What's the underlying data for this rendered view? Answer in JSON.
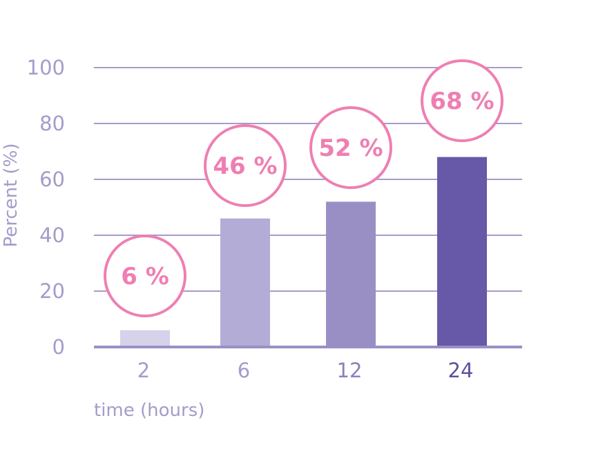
{
  "chart_data": {
    "type": "bar",
    "categories": [
      "2",
      "6",
      "12",
      "24"
    ],
    "values": [
      6,
      46,
      52,
      68
    ],
    "data_labels": [
      "6 %",
      "46 %",
      "52 %",
      "68 %"
    ],
    "bar_colors": [
      "#d6d2ea",
      "#b3acd7",
      "#9a8fc5",
      "#6758a8"
    ],
    "xtick_colors": [
      "#a59bcb",
      "#a59bcb",
      "#8a7fbf",
      "#5e4f9c"
    ],
    "title": "",
    "xlabel": "time (hours)",
    "ylabel": "Percent (%)",
    "ylim": [
      0,
      100
    ],
    "yticks": [
      0,
      20,
      40,
      60,
      80,
      100
    ],
    "grid": true,
    "colors": {
      "grid": "#a59bcb",
      "axis_text": "#a59bcb",
      "bubble": "#ef7fb2"
    }
  }
}
